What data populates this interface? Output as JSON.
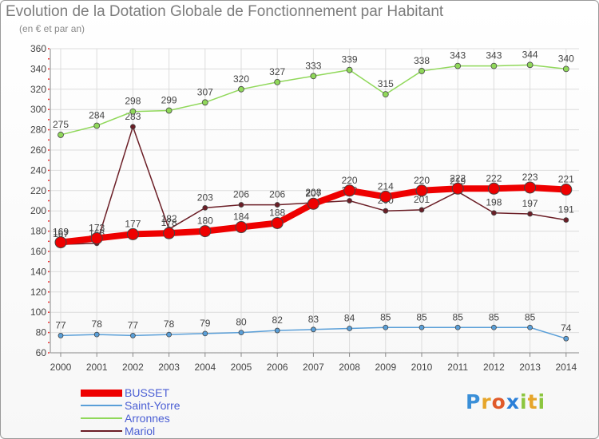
{
  "chart_data": {
    "type": "line",
    "title": "Evolution de la Dotation Globale de Fonctionnement par Habitant",
    "subtitle": "(en € et par an)",
    "x": [
      "2000",
      "2001",
      "2002",
      "2003",
      "2004",
      "2005",
      "2006",
      "2007",
      "2008",
      "2009",
      "2010",
      "2011",
      "2012",
      "2013",
      "2014"
    ],
    "ylim": [
      60,
      360
    ],
    "yticks": [
      60,
      80,
      100,
      120,
      140,
      160,
      180,
      200,
      220,
      240,
      260,
      280,
      300,
      320,
      340,
      360
    ],
    "grid": true,
    "series": [
      {
        "name": "Mariol",
        "color": "#6b1e26",
        "values": [
          167,
          168,
          283,
          182,
          203,
          206,
          206,
          208,
          210,
          200,
          201,
          219,
          198,
          197,
          191
        ]
      },
      {
        "name": "Arronnes",
        "color": "#90d85a",
        "values": [
          275,
          284,
          298,
          299,
          307,
          320,
          327,
          333,
          339,
          315,
          338,
          343,
          343,
          344,
          340
        ]
      },
      {
        "name": "Saint-Yorre",
        "color": "#5a9fd8",
        "values": [
          77,
          78,
          77,
          78,
          79,
          80,
          82,
          83,
          84,
          85,
          85,
          85,
          85,
          85,
          74
        ]
      },
      {
        "name": "BUSSET",
        "color": "#ee0000",
        "values": [
          169,
          173,
          177,
          178,
          180,
          184,
          188,
          207,
          220,
          214,
          220,
          222,
          222,
          223,
          221
        ]
      }
    ]
  },
  "legend": {
    "items": [
      {
        "label": "BUSSET",
        "color": "#ee0000",
        "thickness": "thick"
      },
      {
        "label": "Saint-Yorre",
        "color": "#5a9fd8",
        "thickness": "thin"
      },
      {
        "label": "Arronnes",
        "color": "#90d85a",
        "thickness": "thin"
      },
      {
        "label": "Mariol",
        "color": "#6b1e26",
        "thickness": "thin"
      }
    ]
  },
  "logo": {
    "letters": [
      "P",
      "r",
      "o",
      "x",
      "i",
      "t",
      "i"
    ],
    "colors": [
      "#3a8fd8",
      "#e6a52a",
      "#e05a2a",
      "#2a7fd8",
      "#8cc63f",
      "#e6a52a",
      "#8cc63f"
    ]
  }
}
